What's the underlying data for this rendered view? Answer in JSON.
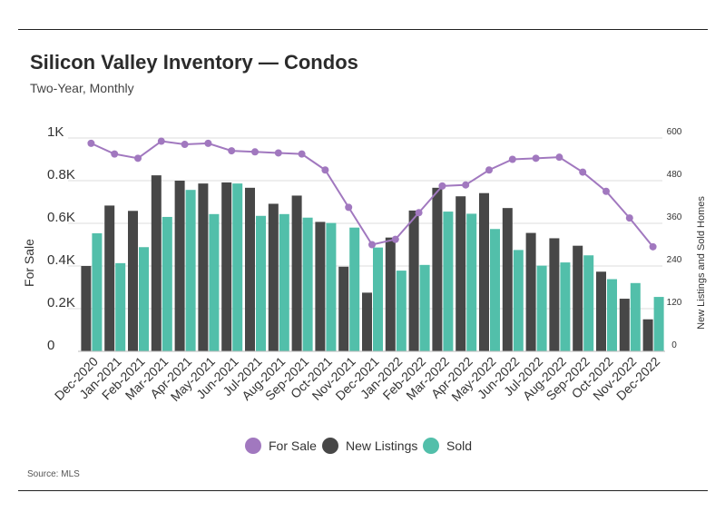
{
  "header": {
    "title": "Silicon Valley Inventory — Condos",
    "subtitle": "Two-Year, Monthly"
  },
  "footer": {
    "source": "Source: MLS"
  },
  "colors": {
    "for_sale": "#a178bf",
    "new_listings": "#474747",
    "sold": "#52bfaa",
    "grid": "#dcdcdc"
  },
  "chart_data": {
    "type": "bar",
    "categories": [
      "Dec-2020",
      "Jan-2021",
      "Feb-2021",
      "Mar-2021",
      "Apr-2021",
      "May-2021",
      "Jun-2021",
      "Jul-2021",
      "Aug-2021",
      "Sep-2021",
      "Oct-2021",
      "Nov-2021",
      "Dec-2021",
      "Jan-2022",
      "Feb-2022",
      "Mar-2022",
      "Apr-2022",
      "May-2022",
      "Jun-2022",
      "Jul-2022",
      "Aug-2022",
      "Sep-2022",
      "Oct-2022",
      "Nov-2022",
      "Dec-2022"
    ],
    "series": [
      {
        "name": "For Sale",
        "type": "line",
        "axis": "left",
        "values": [
          975,
          925,
          905,
          985,
          970,
          975,
          940,
          935,
          930,
          925,
          850,
          675,
          500,
          525,
          650,
          775,
          780,
          850,
          900,
          905,
          910,
          840,
          750,
          625,
          490
        ]
      },
      {
        "name": "New Listings",
        "type": "bar",
        "axis": "right",
        "values": [
          240,
          410,
          395,
          495,
          480,
          472,
          475,
          460,
          415,
          438,
          364,
          238,
          165,
          320,
          396,
          460,
          436,
          445,
          403,
          333,
          318,
          297,
          224,
          148,
          90
        ]
      },
      {
        "name": "Sold",
        "type": "bar",
        "axis": "right",
        "values": [
          332,
          248,
          293,
          378,
          454,
          386,
          472,
          381,
          386,
          376,
          361,
          348,
          292,
          227,
          243,
          393,
          387,
          344,
          285,
          241,
          250,
          270,
          203,
          192,
          153
        ]
      }
    ],
    "y_left": {
      "label": "For Sale",
      "ticks": [
        "0",
        "0.2K",
        "0.4K",
        "0.6K",
        "0.8K",
        "1K"
      ],
      "tick_values": [
        0,
        200,
        400,
        600,
        800,
        1000
      ],
      "range": [
        0,
        1000
      ]
    },
    "y_right": {
      "label": "New Listings and Sold Homes",
      "ticks": [
        "0",
        "120",
        "240",
        "360",
        "480",
        "600"
      ],
      "tick_values": [
        0,
        120,
        240,
        360,
        480,
        600
      ],
      "range": [
        0,
        600
      ]
    },
    "grid": true,
    "legend_position": "bottom-center"
  }
}
